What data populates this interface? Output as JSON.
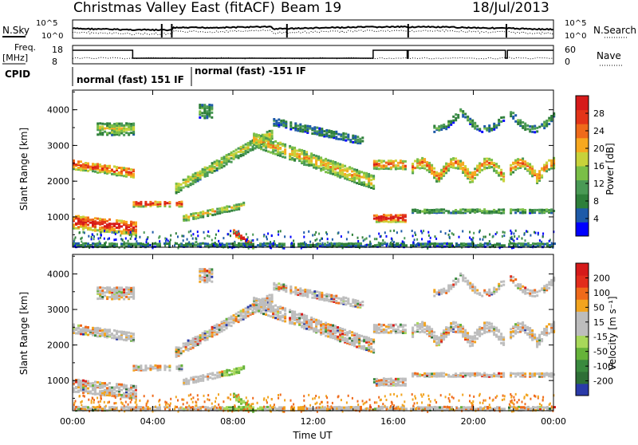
{
  "header": {
    "title": "Christmas Valley East (fitACF)",
    "beam": "Beam 19",
    "date": "18/Jul/2013"
  },
  "status_panel": {
    "nsky_label": "N.Sky",
    "nsearch_label": "N.Search",
    "freq_label_1": "Freq.",
    "freq_label_2": "[MHz]",
    "nave_label": "Nave",
    "cpid_label": "CPID",
    "noise_ticks": [
      "10^5",
      "10^0"
    ],
    "freq_ticks": [
      "18",
      "8"
    ],
    "nave_ticks": [
      "60",
      "0"
    ],
    "cpid_segments": [
      "normal (fast) 151 IF",
      "normal (fast) -151 IF"
    ]
  },
  "colors": {
    "power_scale": [
      "#0000ff",
      "#1e5aa8",
      "#2e7f3a",
      "#4a9a55",
      "#7abf47",
      "#c8d23a",
      "#f7a81f",
      "#ef6a1a",
      "#e33418",
      "#d61a1a"
    ],
    "velocity_scale": [
      "#2a3aa8",
      "#2e6f36",
      "#3a8a3e",
      "#66b33a",
      "#a8d85a",
      "#bdbdbd",
      "#bdbdbd",
      "#f2a41f",
      "#ef6a1a",
      "#e22d1c",
      "#d61a1a"
    ]
  },
  "chart_data": [
    {
      "type": "heatmap",
      "name": "power",
      "ylabel": "Slant Range [km]",
      "y_ticks": [
        "1000",
        "2000",
        "3000",
        "4000"
      ],
      "ylim": [
        150,
        4550
      ],
      "xlim": [
        0,
        24
      ],
      "colorbar_label": "Power [dB]",
      "colorbar_ticks": [
        "4",
        "8",
        "12",
        "16",
        "20",
        "24",
        "28"
      ],
      "colorbar_range": [
        0,
        32
      ]
    },
    {
      "type": "heatmap",
      "name": "velocity",
      "ylabel": "Slant Range [km]",
      "y_ticks": [
        "1000",
        "2000",
        "3000",
        "4000"
      ],
      "ylim": [
        150,
        4550
      ],
      "xlim": [
        0,
        24
      ],
      "colorbar_label": "Velocity [m s⁻¹]",
      "colorbar_ticks": [
        "200",
        "100",
        "50",
        "15",
        "-15",
        "-50",
        "-100",
        "-200"
      ],
      "x_ticks": [
        "00:00",
        "04:00",
        "08:00",
        "12:00",
        "16:00",
        "20:00",
        "00:00"
      ],
      "xlabel": "Time UT"
    }
  ]
}
